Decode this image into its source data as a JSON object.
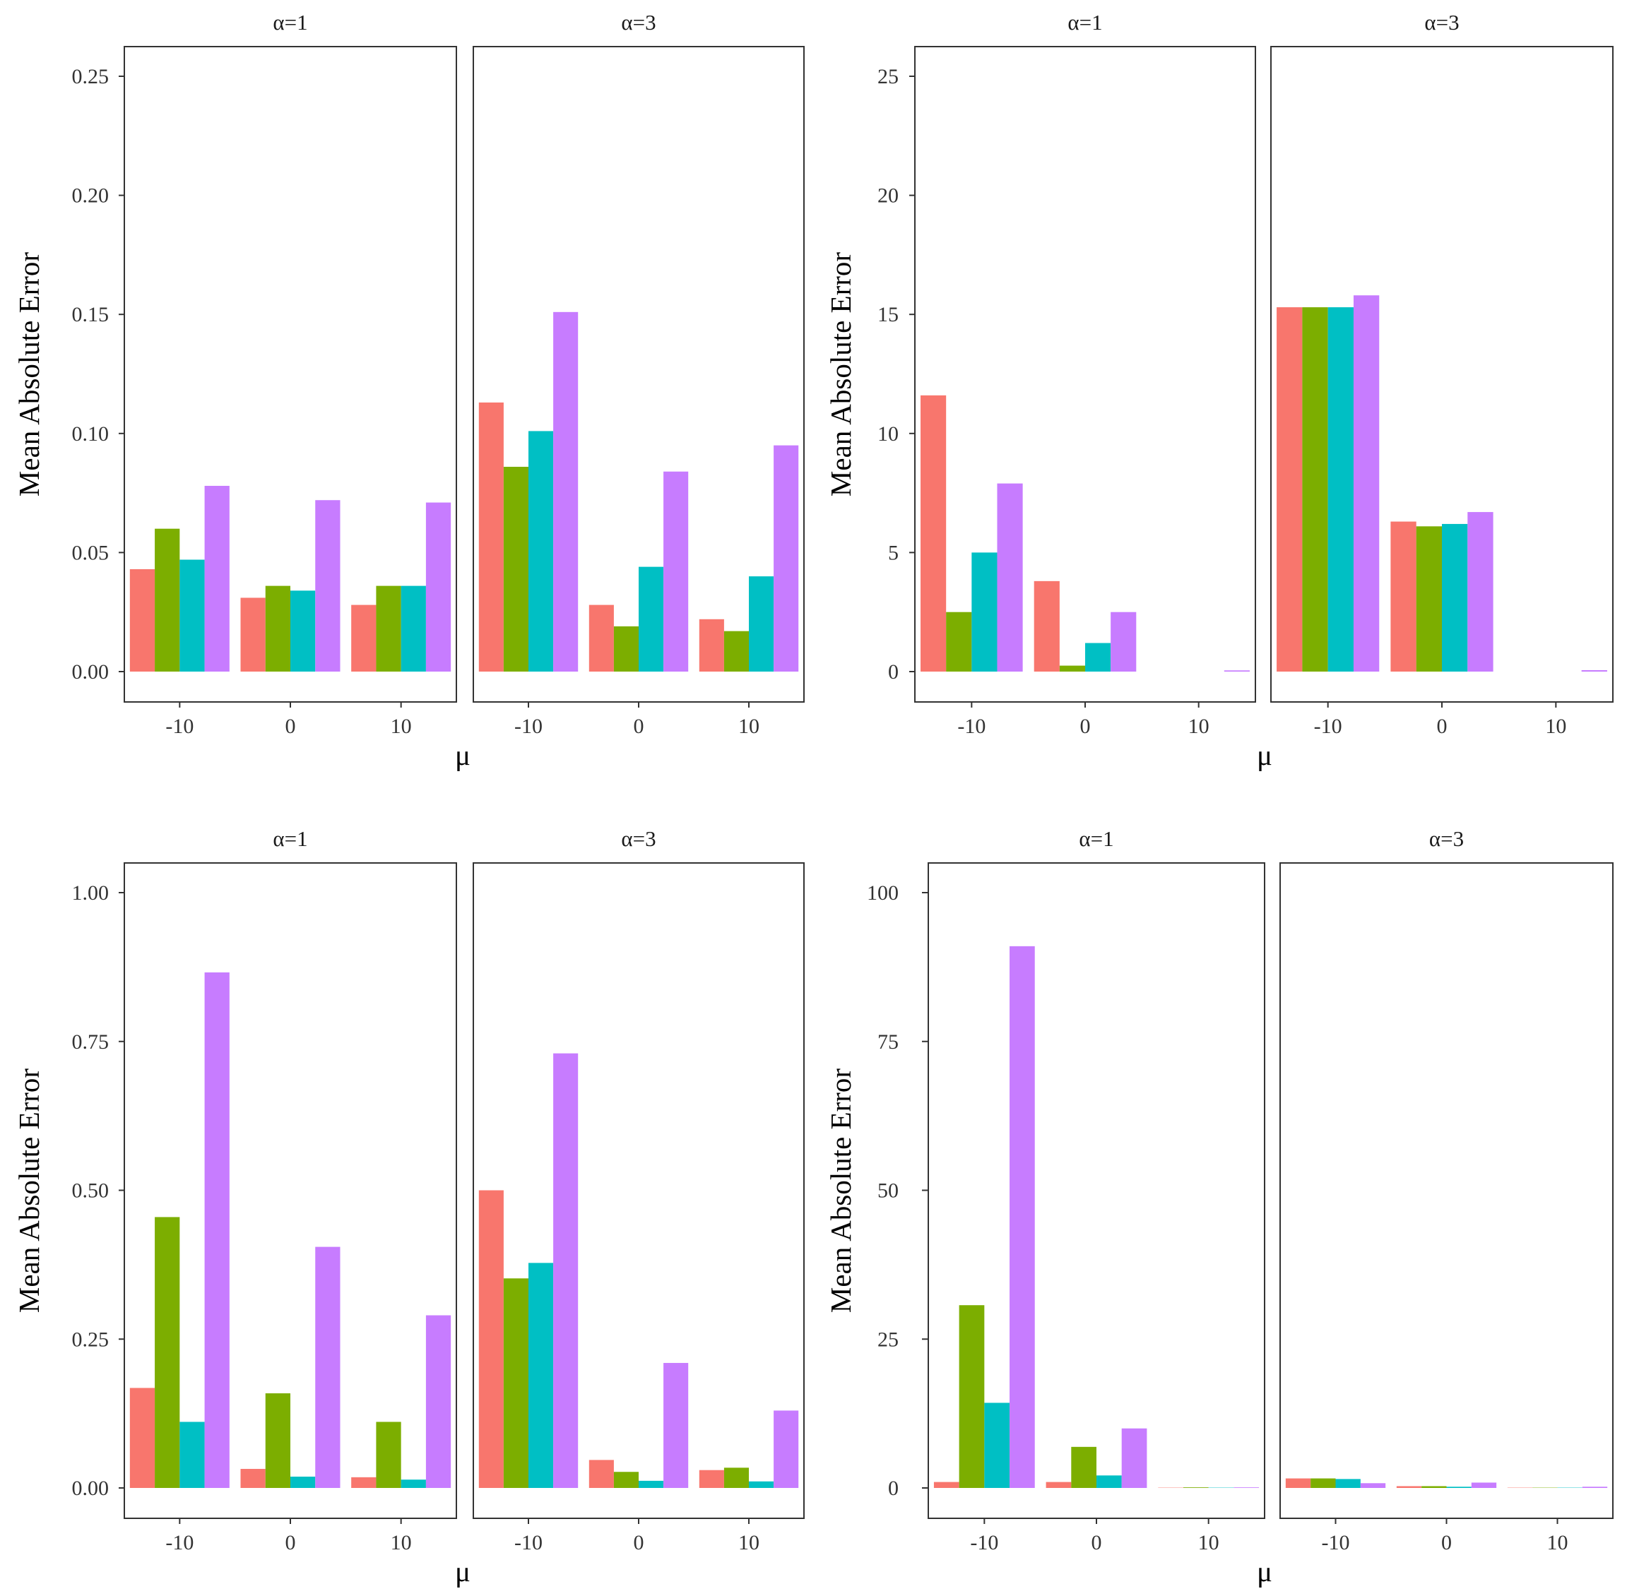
{
  "figure": {
    "series_colors": [
      "#F8766D",
      "#7CAE00",
      "#00BFC4",
      "#C77CFF"
    ],
    "note": ""
  },
  "chart_data": [
    {
      "type": "bar",
      "ylabel": "Mean Absolute Error",
      "xlabel": "μ",
      "ylim": [
        0,
        0.25
      ],
      "yticks": [
        "0.00",
        "0.05",
        "0.10",
        "0.15",
        "0.20",
        "0.25"
      ],
      "ytick_values": [
        0,
        0.05,
        0.1,
        0.15,
        0.2,
        0.25
      ],
      "categories": [
        "-10",
        "0",
        "10"
      ],
      "facets": [
        {
          "label": "α=1",
          "values": [
            [
              0.043,
              0.06,
              0.047,
              0.078
            ],
            [
              0.031,
              0.036,
              0.034,
              0.072
            ],
            [
              0.028,
              0.036,
              0.036,
              0.071
            ]
          ]
        },
        {
          "label": "α=3",
          "values": [
            [
              0.113,
              0.086,
              0.101,
              0.151
            ],
            [
              0.028,
              0.019,
              0.044,
              0.084
            ],
            [
              0.022,
              0.017,
              0.04,
              0.095
            ]
          ]
        }
      ]
    },
    {
      "type": "bar",
      "ylabel": "Mean Absolute Error",
      "xlabel": "μ",
      "ylim": [
        0,
        25
      ],
      "yticks": [
        "0",
        "5",
        "10",
        "15",
        "20",
        "25"
      ],
      "ytick_values": [
        0,
        5,
        10,
        15,
        20,
        25
      ],
      "categories": [
        "-10",
        "0",
        "10"
      ],
      "facets": [
        {
          "label": "α=1",
          "values": [
            [
              11.6,
              2.5,
              5.0,
              7.9
            ],
            [
              3.8,
              0.25,
              1.2,
              2.5
            ],
            [
              0,
              0,
              0,
              0.05
            ]
          ]
        },
        {
          "label": "α=3",
          "values": [
            [
              15.3,
              15.3,
              15.3,
              15.8
            ],
            [
              6.3,
              6.1,
              6.2,
              6.7
            ],
            [
              0,
              0,
              0,
              0.06
            ]
          ]
        }
      ]
    },
    {
      "type": "bar",
      "ylabel": "Mean Absolute Error",
      "xlabel": "μ",
      "ylim": [
        0,
        1.0
      ],
      "yticks": [
        "0.00",
        "0.25",
        "0.50",
        "0.75",
        "1.00"
      ],
      "ytick_values": [
        0,
        0.25,
        0.5,
        0.75,
        1.0
      ],
      "categories": [
        "-10",
        "0",
        "10"
      ],
      "facets": [
        {
          "label": "α=1",
          "values": [
            [
              0.168,
              0.455,
              0.111,
              0.866
            ],
            [
              0.032,
              0.159,
              0.019,
              0.405
            ],
            [
              0.018,
              0.111,
              0.014,
              0.29
            ]
          ]
        },
        {
          "label": "α=3",
          "values": [
            [
              0.5,
              0.352,
              0.378,
              0.73
            ],
            [
              0.047,
              0.027,
              0.012,
              0.21
            ],
            [
              0.03,
              0.034,
              0.011,
              0.13
            ]
          ]
        }
      ]
    },
    {
      "type": "bar",
      "ylabel": "Mean Absolute Error",
      "xlabel": "μ",
      "ylim": [
        0,
        100
      ],
      "yticks": [
        "0",
        "25",
        "50",
        "75",
        "100"
      ],
      "ytick_values": [
        0,
        25,
        50,
        75,
        100
      ],
      "categories": [
        "-10",
        "0",
        "10"
      ],
      "facets": [
        {
          "label": "α=1",
          "values": [
            [
              1.0,
              30.7,
              14.3,
              91.0
            ],
            [
              1.0,
              6.9,
              2.1,
              10.0
            ],
            [
              0.05,
              0.1,
              0.05,
              0.1
            ]
          ]
        },
        {
          "label": "α=3",
          "values": [
            [
              1.6,
              1.6,
              1.5,
              0.8
            ],
            [
              0.3,
              0.3,
              0.2,
              0.9
            ],
            [
              0.05,
              0.05,
              0.05,
              0.2
            ]
          ]
        }
      ]
    }
  ]
}
